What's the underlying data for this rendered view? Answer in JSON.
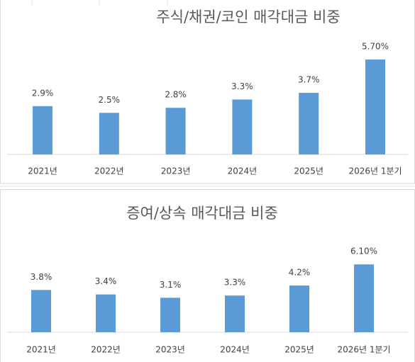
{
  "chart_data": [
    {
      "type": "bar",
      "title": "주식/채권/코인 매각대금 비중",
      "categories": [
        "2021년",
        "2022년",
        "2023년",
        "2024년",
        "2025년",
        "2026년 1분기"
      ],
      "values": [
        2.9,
        2.5,
        2.8,
        3.3,
        3.7,
        5.7
      ],
      "value_labels": [
        "2.9%",
        "2.5%",
        "2.8%",
        "3.3%",
        "3.7%",
        "5.70%"
      ],
      "color": "#5b9bd5"
    },
    {
      "type": "bar",
      "title": "증여/상속 매각대금 비중",
      "categories": [
        "2021년",
        "2022년",
        "2023년",
        "2024년",
        "2025년",
        "2026년 1분기"
      ],
      "values": [
        3.8,
        3.4,
        3.1,
        3.3,
        4.2,
        6.1
      ],
      "value_labels": [
        "3.8%",
        "3.4%",
        "3.1%",
        "3.3%",
        "4.2%",
        "6.10%"
      ],
      "color": "#5b9bd5"
    }
  ]
}
